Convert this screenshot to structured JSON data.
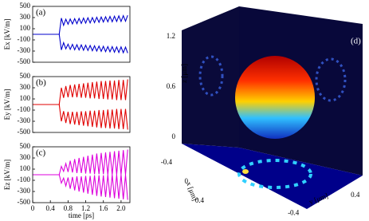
{
  "chart_data": [
    {
      "type": "line",
      "label": "(a)",
      "ylabel": "Ex [kV/m]",
      "xlim": [
        0,
        2.2
      ],
      "ylim": [
        -500,
        500
      ],
      "yticks": [
        -500,
        -300,
        -100,
        100,
        300,
        500
      ],
      "x": [
        0,
        0.6,
        0.65,
        0.7,
        0.75,
        0.8,
        0.85,
        0.9,
        0.95,
        1.0,
        1.05,
        1.1,
        1.15,
        1.2,
        1.25,
        1.3,
        1.35,
        1.4,
        1.45,
        1.5,
        1.55,
        1.6,
        1.65,
        1.7,
        1.75,
        1.8,
        1.85,
        1.9,
        1.95,
        2.0,
        2.05,
        2.1,
        2.15
      ],
      "series": [
        {
          "color": "#0000cc",
          "values": [
            0,
            0,
            290,
            160,
            270,
            180,
            275,
            185,
            280,
            190,
            285,
            195,
            290,
            200,
            295,
            205,
            300,
            210,
            305,
            215,
            310,
            220,
            315,
            225,
            320,
            225,
            325,
            230,
            330,
            230,
            335,
            235,
            340
          ]
        },
        {
          "color": "#0000cc",
          "values": [
            0,
            0,
            -280,
            -150,
            -260,
            -175,
            -270,
            -180,
            -275,
            -185,
            -280,
            -190,
            -285,
            -195,
            -290,
            -200,
            -295,
            -205,
            -300,
            -210,
            -305,
            -215,
            -310,
            -220,
            -315,
            -220,
            -320,
            -225,
            -325,
            -225,
            -330,
            -230,
            -335
          ]
        }
      ]
    },
    {
      "type": "line",
      "label": "(b)",
      "ylabel": "Ey [kV/m]",
      "xlim": [
        0,
        2.2
      ],
      "ylim": [
        -500,
        500
      ],
      "yticks": [
        -500,
        -300,
        -100,
        100,
        300,
        500
      ],
      "x": [
        0,
        0.6,
        0.65,
        0.7,
        0.75,
        0.8,
        0.85,
        0.9,
        0.95,
        1.0,
        1.05,
        1.1,
        1.15,
        1.2,
        1.25,
        1.3,
        1.35,
        1.4,
        1.45,
        1.5,
        1.55,
        1.6,
        1.65,
        1.7,
        1.75,
        1.8,
        1.85,
        1.9,
        1.95,
        2.0,
        2.05,
        2.1,
        2.15
      ],
      "series": [
        {
          "color": "#e00000",
          "values": [
            0,
            0,
            300,
            120,
            330,
            130,
            350,
            130,
            360,
            130,
            370,
            120,
            380,
            120,
            390,
            110,
            400,
            110,
            410,
            100,
            420,
            100,
            420,
            90,
            430,
            90,
            430,
            80,
            440,
            80,
            440,
            80,
            450
          ]
        },
        {
          "color": "#e00000",
          "values": [
            0,
            0,
            -300,
            -120,
            -330,
            -130,
            -350,
            -130,
            -360,
            -130,
            -370,
            -120,
            -380,
            -120,
            -390,
            -110,
            -400,
            -110,
            -410,
            -100,
            -420,
            -100,
            -420,
            -90,
            -430,
            -90,
            -430,
            -80,
            -440,
            -80,
            -440,
            -80,
            -450
          ]
        }
      ]
    },
    {
      "type": "line",
      "label": "(c)",
      "ylabel": "Ez [kV/m]",
      "xlabel": "time [ps]",
      "xlim": [
        0,
        2.2
      ],
      "ylim": [
        -500,
        500
      ],
      "yticks": [
        -500,
        -300,
        -100,
        100,
        300,
        500
      ],
      "xticks": [
        0,
        0.4,
        0.8,
        1.2,
        1.6,
        {
          "value": 2,
          "label": "2.0"
        }
      ],
      "x": [
        0,
        0.6,
        0.65,
        0.7,
        0.75,
        0.8,
        0.85,
        0.9,
        0.95,
        1.0,
        1.05,
        1.1,
        1.15,
        1.2,
        1.25,
        1.3,
        1.35,
        1.4,
        1.45,
        1.5,
        1.55,
        1.6,
        1.65,
        1.7,
        1.75,
        1.8,
        1.85,
        1.9,
        1.95,
        2.0,
        2.05,
        2.1,
        2.15
      ],
      "series": [
        {
          "color": "#dd00dd",
          "values": [
            0,
            0,
            150,
            60,
            200,
            50,
            250,
            40,
            280,
            30,
            300,
            30,
            320,
            20,
            340,
            20,
            360,
            10,
            380,
            10,
            390,
            10,
            400,
            0,
            410,
            0,
            420,
            0,
            430,
            0,
            440,
            0,
            450
          ]
        },
        {
          "color": "#dd00dd",
          "values": [
            0,
            0,
            -150,
            -60,
            -200,
            -50,
            -250,
            -40,
            -280,
            -30,
            -300,
            -30,
            -320,
            -20,
            -340,
            -20,
            -360,
            -10,
            -380,
            -10,
            -390,
            -10,
            -400,
            0,
            -410,
            0,
            -420,
            0,
            -430,
            0,
            -440,
            0,
            -450
          ]
        }
      ]
    },
    {
      "type": "surface3d",
      "label": "(d)",
      "zlabel": "z [μm]",
      "xlabel": "x [μm]",
      "ylabel": "y [μm]",
      "zticks": [
        0,
        0.6,
        1.2
      ],
      "xticks": [
        -0.4,
        0,
        0.4
      ],
      "yticks": [
        -0.4,
        0.4
      ]
    }
  ]
}
